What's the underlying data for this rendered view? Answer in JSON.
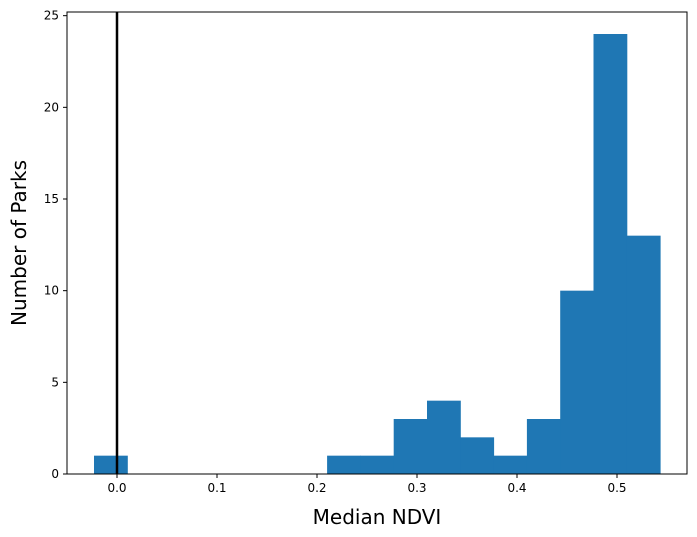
{
  "chart_data": {
    "type": "bar",
    "subtype": "histogram",
    "xlabel": "Median NDVI",
    "ylabel": "Number of Parks",
    "xlim": [
      -0.05,
      0.57
    ],
    "ylim": [
      0,
      25.2
    ],
    "x_ticks": [
      0.0,
      0.1,
      0.2,
      0.3,
      0.4,
      0.5
    ],
    "x_tick_labels": [
      "0.0",
      "0.1",
      "0.2",
      "0.3",
      "0.4",
      "0.5"
    ],
    "y_ticks": [
      0,
      5,
      10,
      15,
      20,
      25
    ],
    "y_tick_labels": [
      "0",
      "5",
      "10",
      "15",
      "20",
      "25"
    ],
    "bin_edges": [
      -0.023,
      0.0103,
      0.0436,
      0.0769,
      0.1102,
      0.1435,
      0.1768,
      0.2101,
      0.2434,
      0.2767,
      0.31,
      0.3433,
      0.3766,
      0.4099,
      0.4432,
      0.4765,
      0.5098,
      0.5431
    ],
    "counts": [
      1,
      0,
      0,
      0,
      0,
      0,
      0,
      1,
      1,
      3,
      4,
      2,
      1,
      3,
      10,
      24,
      13
    ],
    "bar_color": "#1f77b4",
    "vertical_line": {
      "x": 0.0,
      "color": "#000000"
    },
    "grid": false,
    "legend": "none"
  }
}
